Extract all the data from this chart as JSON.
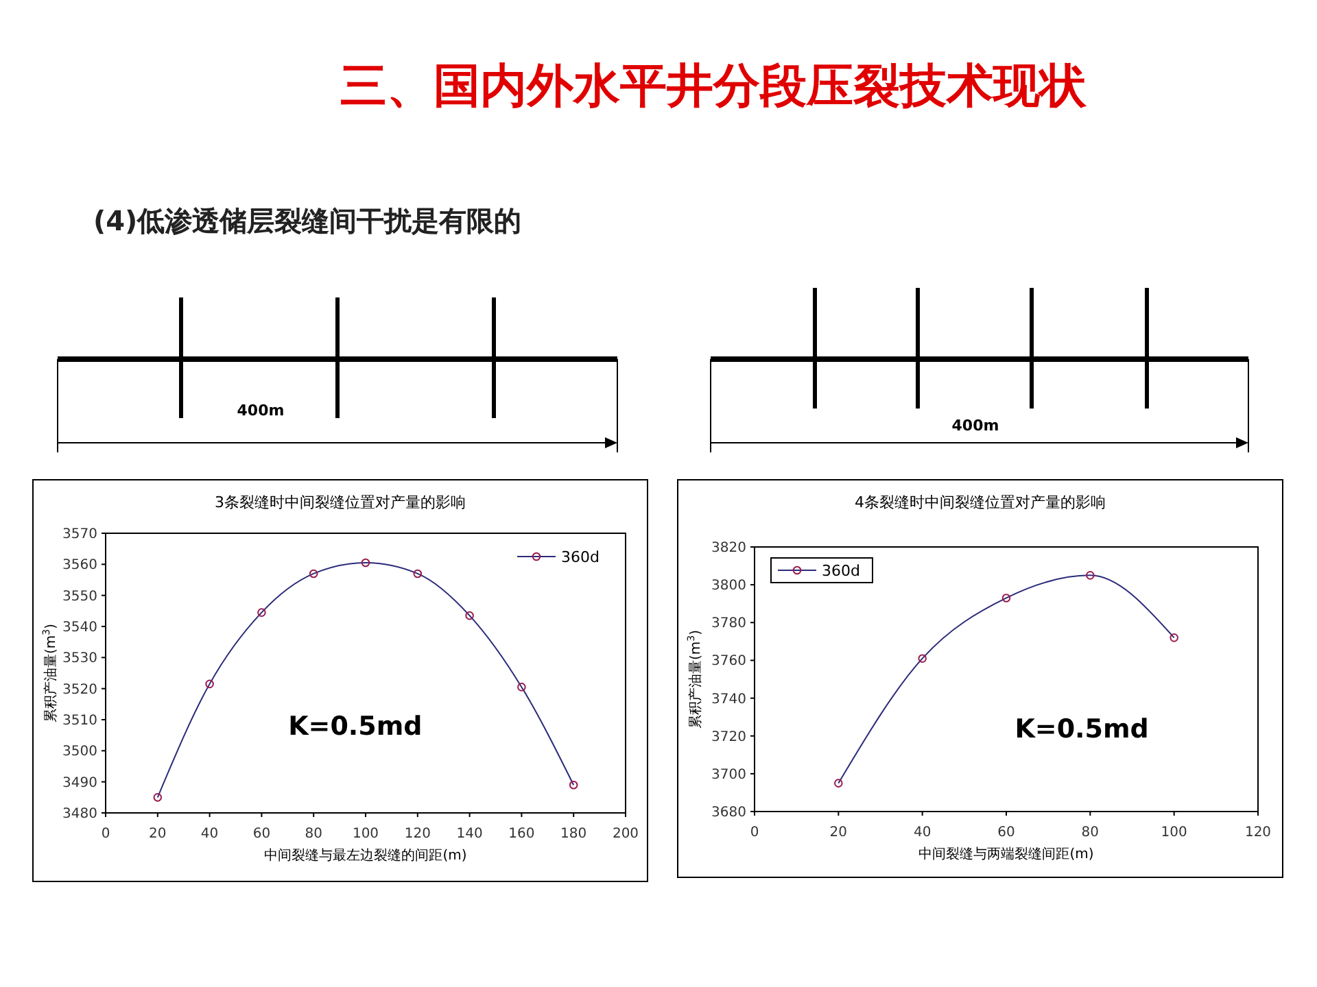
{
  "chart_data": [
    {
      "type": "other",
      "title": "三、国内外水平井分段压裂技术现状",
      "subtitle": "(4)低渗透储层裂缝间干扰是有限的",
      "annotations": [
        "400m",
        "400m"
      ]
    },
    {
      "type": "line",
      "title": "3条裂缝时中间裂缝位置对产量的影响",
      "xlabel": "中间裂缝与最左边裂缝的间距(m)",
      "ylabel": "累积产油量(m$^{3}$)",
      "x": [
        20,
        40,
        60,
        80,
        100,
        120,
        140,
        160,
        180
      ],
      "xlim": [
        0,
        200
      ],
      "xticks": [
        0,
        20,
        40,
        60,
        80,
        100,
        120,
        140,
        160,
        180,
        200
      ],
      "ylim": [
        3480,
        3570
      ],
      "yticks": [
        3480,
        3490,
        3500,
        3510,
        3520,
        3530,
        3540,
        3550,
        3560,
        3570
      ],
      "marker": "circle",
      "legend": "top right",
      "grid": false,
      "annotations": [
        "K=0.5md"
      ],
      "series": [
        {
          "name": "360d",
          "color": "#2a2a7a",
          "values": [
            3485,
            3521.5,
            3544.5,
            3557,
            3560.5,
            3557,
            3543.5,
            3520.5,
            3489
          ]
        }
      ]
    },
    {
      "type": "line",
      "title": "4条裂缝时中间裂缝位置对产量的影响",
      "xlabel": "中间裂缝与两端裂缝间距(m)",
      "ylabel": "累积产油量(m$^{3}$)",
      "x": [
        20,
        40,
        60,
        80,
        100
      ],
      "xlim": [
        0,
        120
      ],
      "xticks": [
        0,
        20,
        40,
        60,
        80,
        100,
        120
      ],
      "ylim": [
        3680,
        3820
      ],
      "yticks": [
        3680,
        3700,
        3720,
        3740,
        3760,
        3780,
        3800,
        3820
      ],
      "marker": "circle",
      "legend": "top left",
      "grid": false,
      "annotations": [
        "K=0.5md"
      ],
      "series": [
        {
          "name": "360d",
          "color": "#2a2a7a",
          "values": [
            3695,
            3761,
            3793,
            3805,
            3772
          ]
        }
      ]
    }
  ]
}
